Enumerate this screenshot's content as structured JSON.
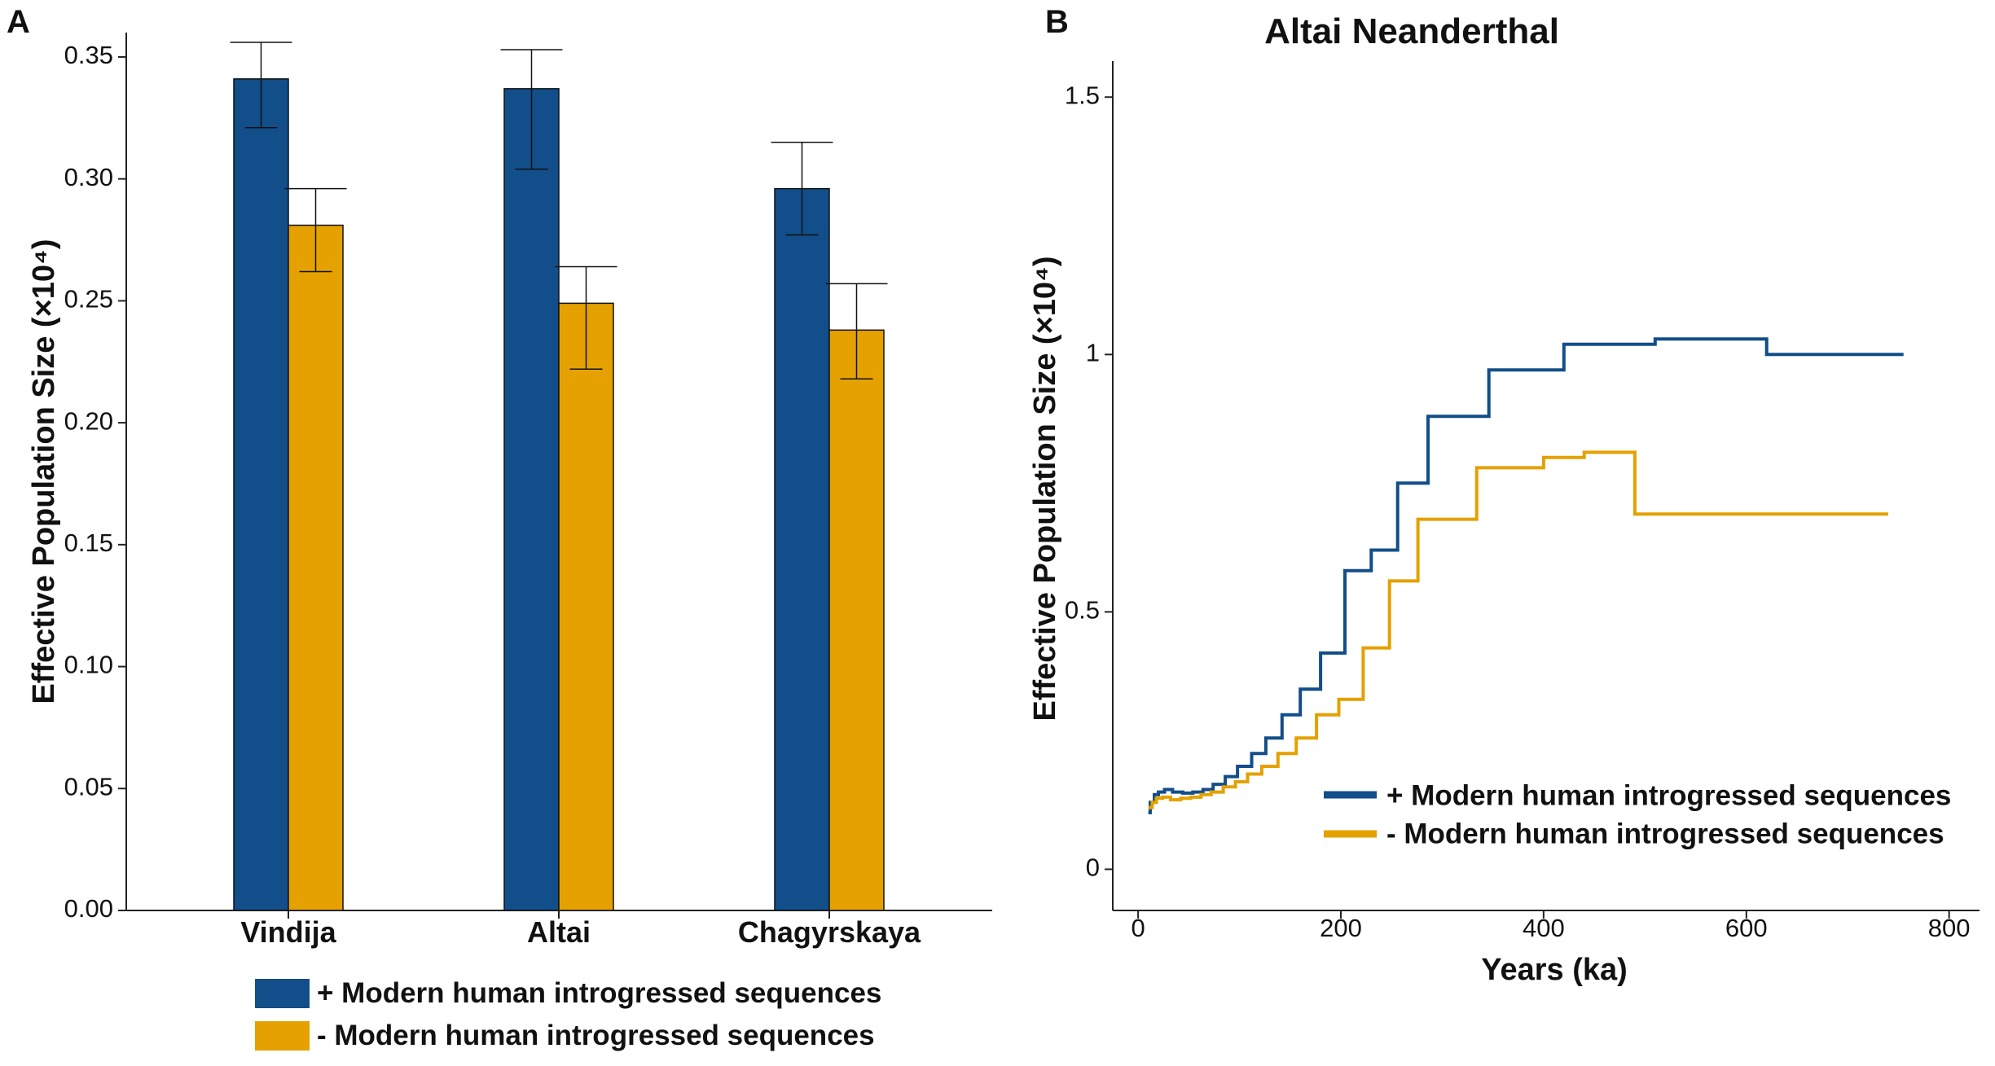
{
  "figure": {
    "panel_a_label": "A",
    "panel_b_label": "B"
  },
  "colors": {
    "plus": "#124e89",
    "minus": "#e4a100",
    "axis": "#222222"
  },
  "chart_data": [
    {
      "id": "A",
      "type": "bar",
      "title": "",
      "xlabel": "",
      "ylabel": "Effective Population Size (×10⁴)",
      "categories": [
        "Vindija",
        "Altai",
        "Chagyrskaya"
      ],
      "ylim": [
        0,
        0.36
      ],
      "yticks": [
        "0.00",
        "0.05",
        "0.10",
        "0.15",
        "0.20",
        "0.25",
        "0.30",
        "0.35"
      ],
      "series": [
        {
          "name": "+ Modern human introgressed sequences",
          "color": "#124e89",
          "values": [
            0.341,
            0.337,
            0.296
          ],
          "err_low": [
            0.321,
            0.304,
            0.277
          ],
          "err_high": [
            0.356,
            0.353,
            0.315
          ]
        },
        {
          "name": "- Modern human introgressed sequences",
          "color": "#e4a100",
          "values": [
            0.281,
            0.249,
            0.238
          ],
          "err_low": [
            0.262,
            0.222,
            0.218
          ],
          "err_high": [
            0.296,
            0.264,
            0.257
          ]
        }
      ],
      "legend": {
        "position": "bottom",
        "entries": [
          "+ Modern human introgressed sequences",
          "- Modern human introgressed sequences"
        ]
      }
    },
    {
      "id": "B",
      "type": "line",
      "title": "Altai Neanderthal",
      "xlabel": "Years (ka)",
      "ylabel": "Effective Population Size (×10⁴)",
      "xlim": [
        -25,
        830
      ],
      "ylim": [
        -0.08,
        1.57
      ],
      "xticks": [
        0,
        200,
        400,
        600,
        800
      ],
      "ytick_values": [
        0,
        0.5,
        1,
        1.5
      ],
      "ytick_labels": [
        "0",
        "0.5",
        "1",
        "1.5"
      ],
      "series": [
        {
          "name": "+ Modern human introgressed sequences",
          "color": "#124e89",
          "x": [
            10,
            12,
            12,
            16,
            16,
            20,
            20,
            26,
            26,
            34,
            34,
            44,
            44,
            54,
            54,
            64,
            64,
            74,
            74,
            86,
            86,
            98,
            98,
            112,
            112,
            126,
            126,
            142,
            142,
            160,
            160,
            180,
            180,
            204,
            204,
            230,
            230,
            256,
            256,
            286,
            286,
            316,
            316,
            346,
            346,
            380,
            380,
            420,
            420,
            460,
            460,
            510,
            510,
            560,
            560,
            620,
            620,
            680,
            680,
            755
          ],
          "y": [
            0.11,
            0.11,
            0.13,
            0.13,
            0.145,
            0.145,
            0.15,
            0.15,
            0.155,
            0.155,
            0.15,
            0.15,
            0.148,
            0.148,
            0.15,
            0.15,
            0.155,
            0.155,
            0.165,
            0.165,
            0.18,
            0.18,
            0.2,
            0.2,
            0.225,
            0.225,
            0.255,
            0.255,
            0.3,
            0.3,
            0.35,
            0.35,
            0.42,
            0.42,
            0.58,
            0.58,
            0.62,
            0.62,
            0.75,
            0.75,
            0.88,
            0.88,
            0.88,
            0.88,
            0.97,
            0.97,
            0.97,
            0.97,
            1.02,
            1.02,
            1.02,
            1.02,
            1.03,
            1.03,
            1.03,
            1.03,
            1.0,
            1.0,
            1.0,
            1.0
          ]
        },
        {
          "name": "- Modern human introgressed sequences",
          "color": "#e4a100",
          "x": [
            10,
            14,
            14,
            18,
            18,
            24,
            24,
            32,
            32,
            42,
            42,
            52,
            52,
            62,
            62,
            72,
            72,
            84,
            84,
            96,
            96,
            108,
            108,
            122,
            122,
            138,
            138,
            156,
            156,
            176,
            176,
            198,
            198,
            222,
            222,
            248,
            248,
            276,
            276,
            304,
            304,
            334,
            334,
            366,
            366,
            400,
            400,
            440,
            440,
            490,
            490,
            545,
            545,
            605,
            605,
            740
          ],
          "y": [
            0.12,
            0.12,
            0.13,
            0.13,
            0.138,
            0.138,
            0.14,
            0.14,
            0.135,
            0.135,
            0.138,
            0.138,
            0.14,
            0.14,
            0.145,
            0.145,
            0.15,
            0.15,
            0.16,
            0.16,
            0.17,
            0.17,
            0.185,
            0.185,
            0.2,
            0.2,
            0.225,
            0.225,
            0.255,
            0.255,
            0.3,
            0.3,
            0.33,
            0.33,
            0.43,
            0.43,
            0.56,
            0.56,
            0.68,
            0.68,
            0.68,
            0.68,
            0.78,
            0.78,
            0.78,
            0.78,
            0.8,
            0.8,
            0.81,
            0.81,
            0.69,
            0.69,
            0.69,
            0.69,
            0.69,
            0.69
          ],
          "_note": "",
          "_comment": ""
        }
      ],
      "legend": {
        "position": "bottom-right",
        "entries": [
          "+ Modern human introgressed sequences",
          "- Modern human introgressed sequences"
        ]
      }
    }
  ]
}
